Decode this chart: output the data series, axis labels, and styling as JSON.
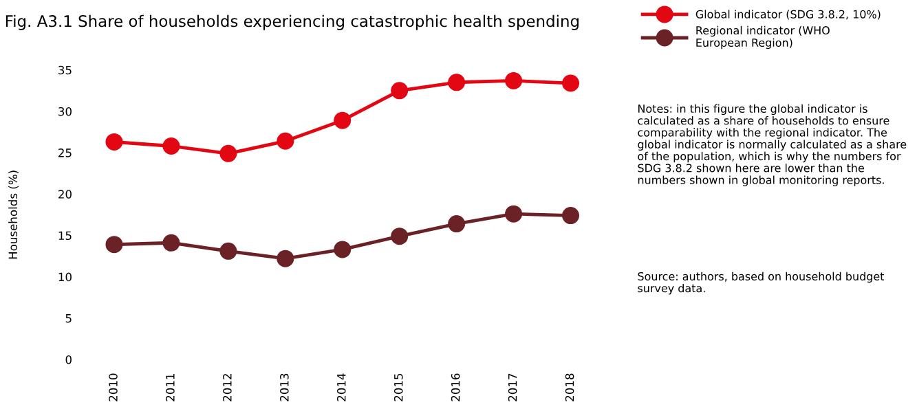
{
  "chart_data": {
    "type": "line",
    "title": "Fig. A3.1 Share of households experiencing catastrophic health spending",
    "ylabel": "Households (%)",
    "categories": [
      "2010",
      "2011",
      "2012",
      "2013",
      "2014",
      "2015",
      "2016",
      "2017",
      "2018"
    ],
    "series": [
      {
        "name": "Global indicator (SDG 3.8.2, 10%)",
        "color": "#e30613",
        "values": [
          26.3,
          25.8,
          24.9,
          26.4,
          28.9,
          32.5,
          33.5,
          33.7,
          33.4
        ]
      },
      {
        "name": "Regional indicator (WHO European Region)",
        "color": "#6b2226",
        "values": [
          13.9,
          14.1,
          13.1,
          12.2,
          13.3,
          14.9,
          16.4,
          17.6,
          17.4
        ]
      }
    ],
    "ylim": [
      0,
      35
    ],
    "yticks": [
      0,
      5,
      10,
      15,
      20,
      25,
      30,
      35
    ],
    "grid": false,
    "legend": "top right",
    "marker": "circle",
    "line_style": "solid",
    "annotations": [
      "Notes: in this figure the global indicator is calculated as a share of households to ensure comparability with the regional indicator. The global indicator is normally calculated as a share of the population, which is why the numbers for SDG 3.8.2 shown here are lower than the numbers shown in global monitoring reports.",
      "Source: authors, based on household budget survey data."
    ]
  }
}
